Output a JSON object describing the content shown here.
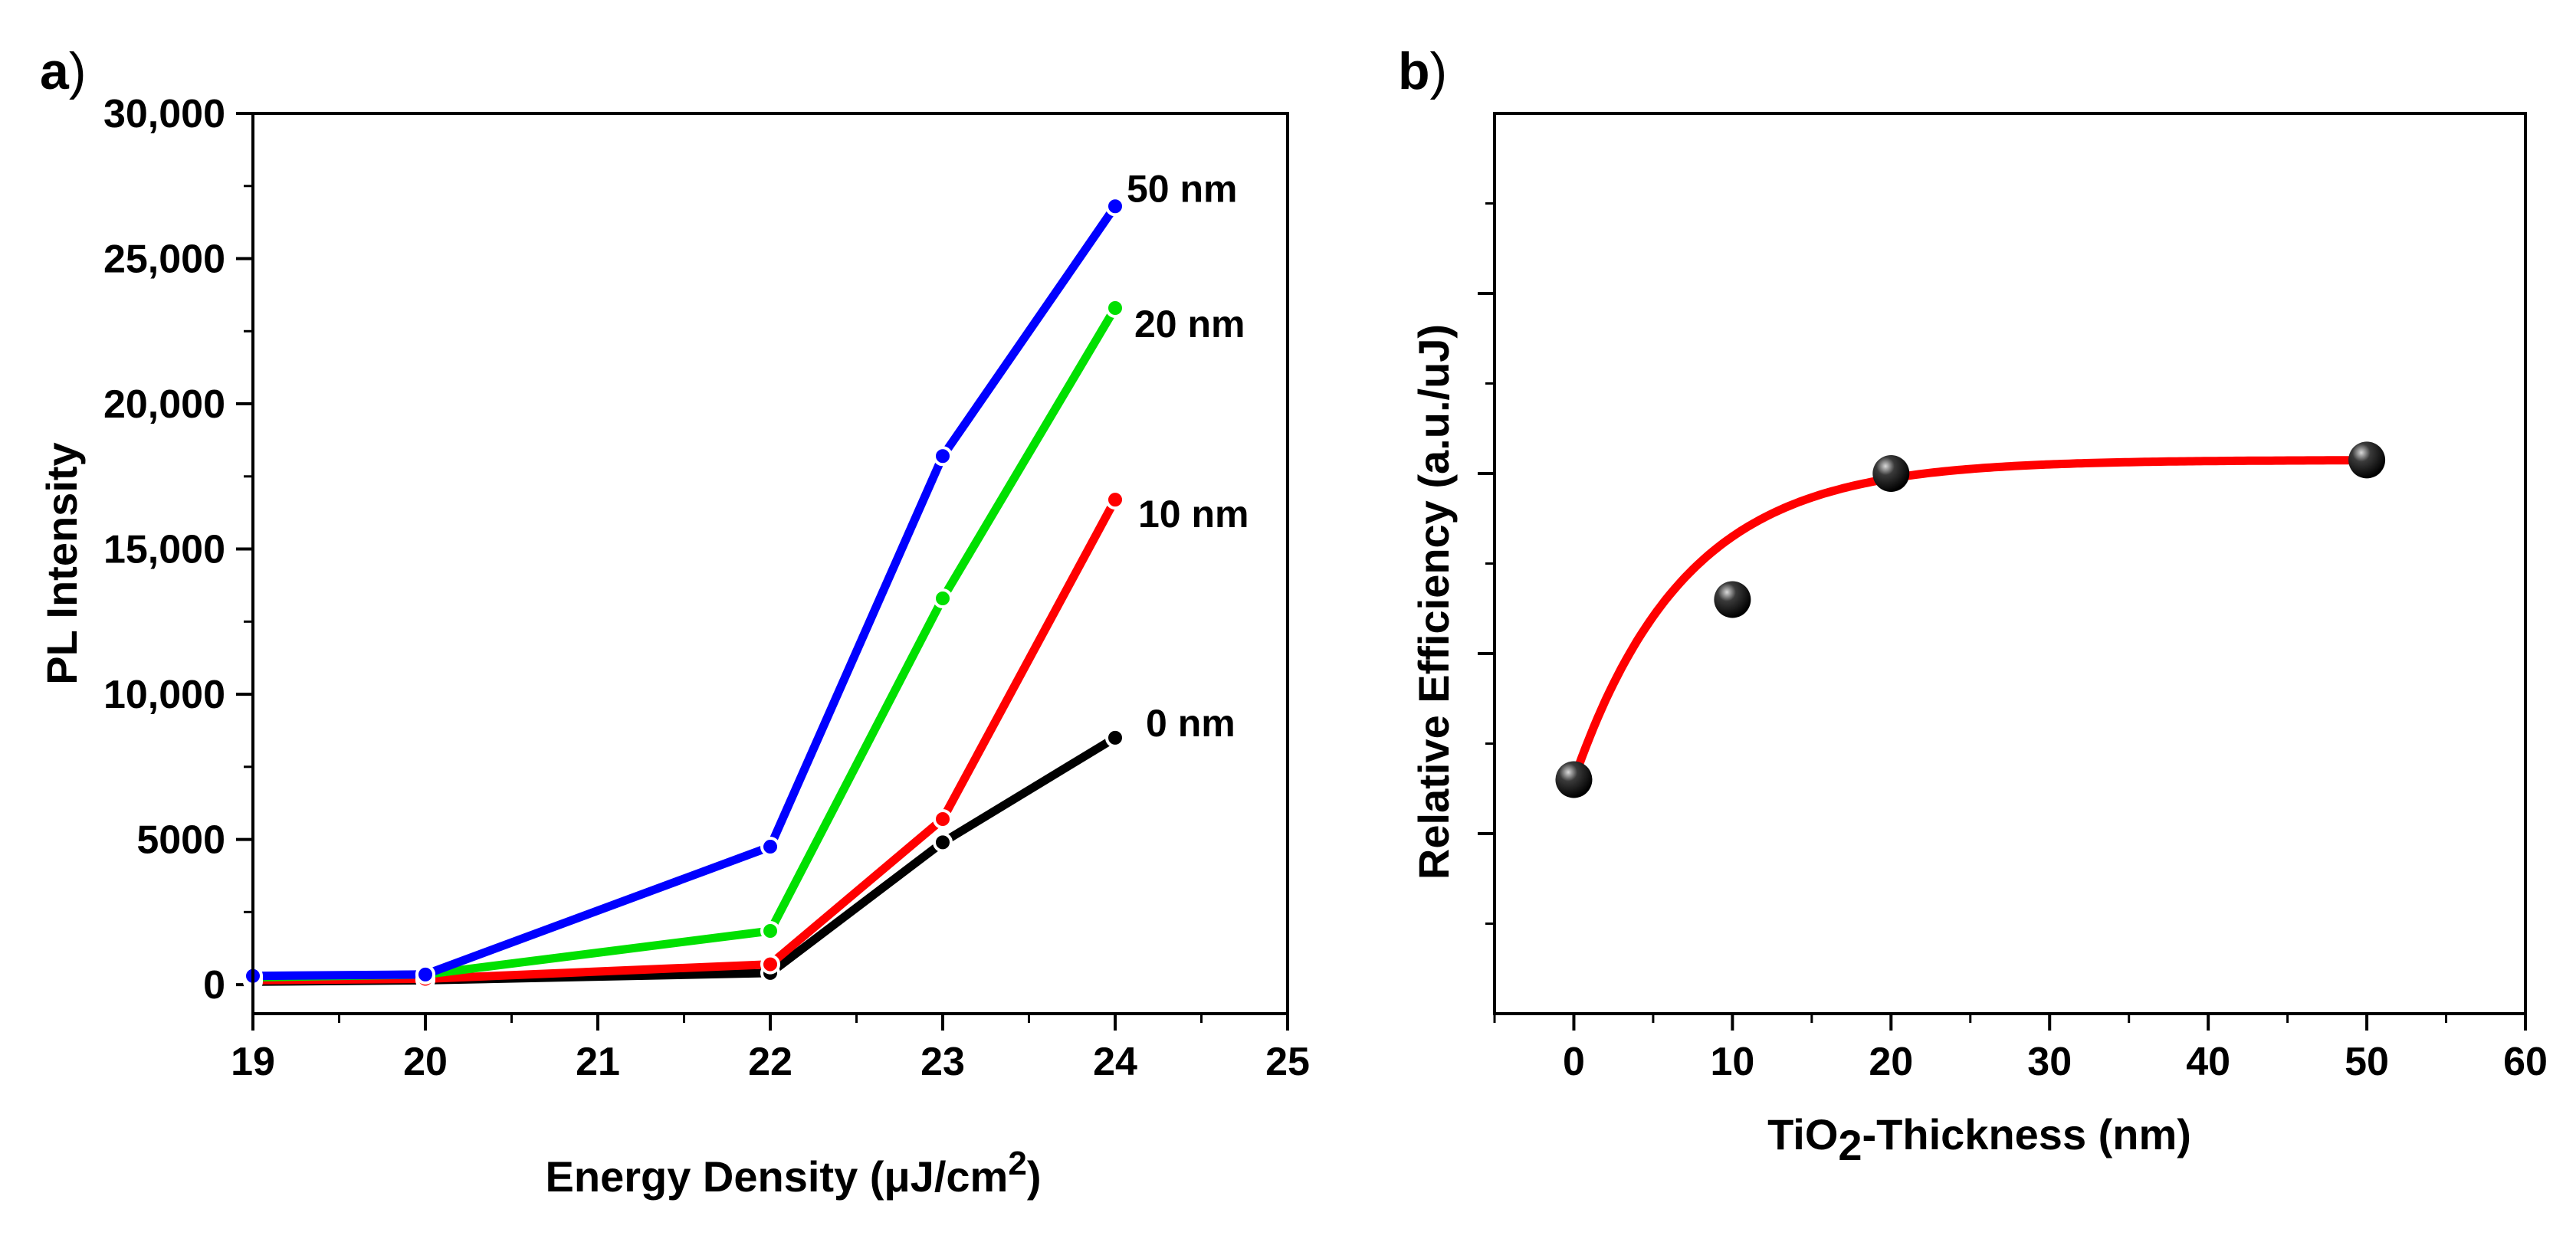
{
  "panels": [
    {
      "label": "a",
      "chart_data": {
        "type": "line",
        "title": "",
        "xlabel": "Energy Density (μJ/cm",
        "xlabel_superscript": "2",
        "xlabel_suffix": ")",
        "ylabel": "PL Intensity",
        "xlim": [
          19,
          25
        ],
        "ylim": [
          -1000,
          30000
        ],
        "xticks": [
          19,
          20,
          21,
          22,
          23,
          24,
          25
        ],
        "xtick_labels": [
          "19",
          "20",
          "21",
          "22",
          "23",
          "24",
          "25"
        ],
        "yticks": [
          0,
          5000,
          10000,
          15000,
          20000,
          25000,
          30000
        ],
        "ytick_labels": [
          "0",
          "5000",
          "10,000",
          "15,000",
          "20,000",
          "25,000",
          "30,000"
        ],
        "x": [
          19,
          20,
          22,
          23,
          24
        ],
        "series": [
          {
            "name": "0 nm",
            "color": "#000000",
            "values": [
              100,
              150,
              400,
              4900,
              8500
            ]
          },
          {
            "name": "10 nm",
            "color": "#ff0000",
            "values": [
              150,
              200,
              700,
              5700,
              16700
            ]
          },
          {
            "name": "20 nm",
            "color": "#00e000",
            "values": [
              250,
              350,
              1850,
              13300,
              23300
            ]
          },
          {
            "name": "50 nm",
            "color": "#0000ff",
            "values": [
              300,
              350,
              4750,
              18200,
              26800
            ]
          }
        ]
      }
    },
    {
      "label": "b",
      "chart_data": {
        "type": "scatter",
        "title": "",
        "xlabel_prefix": "TiO",
        "xlabel_subscript": "2",
        "xlabel_suffix": "-Thickness (nm)",
        "ylabel": "Relative Efficiency (a.u./uJ)",
        "xlim": [
          -5,
          60
        ],
        "ylim": [
          0,
          10
        ],
        "xticks": [
          0,
          10,
          20,
          30,
          40,
          50,
          60
        ],
        "xtick_labels": [
          "0",
          "10",
          "20",
          "30",
          "40",
          "50",
          "60"
        ],
        "ytick_labels_shown": false,
        "points": {
          "color": "#000000",
          "x": [
            0,
            10,
            20,
            50
          ],
          "y": [
            2.6,
            4.6,
            6.0,
            6.15
          ]
        },
        "fit": {
          "color": "#ff0000",
          "x_range": [
            0,
            50
          ],
          "model": "exponential saturation",
          "y0": 2.6,
          "y_inf": 6.15,
          "tau": 7
        }
      }
    }
  ]
}
